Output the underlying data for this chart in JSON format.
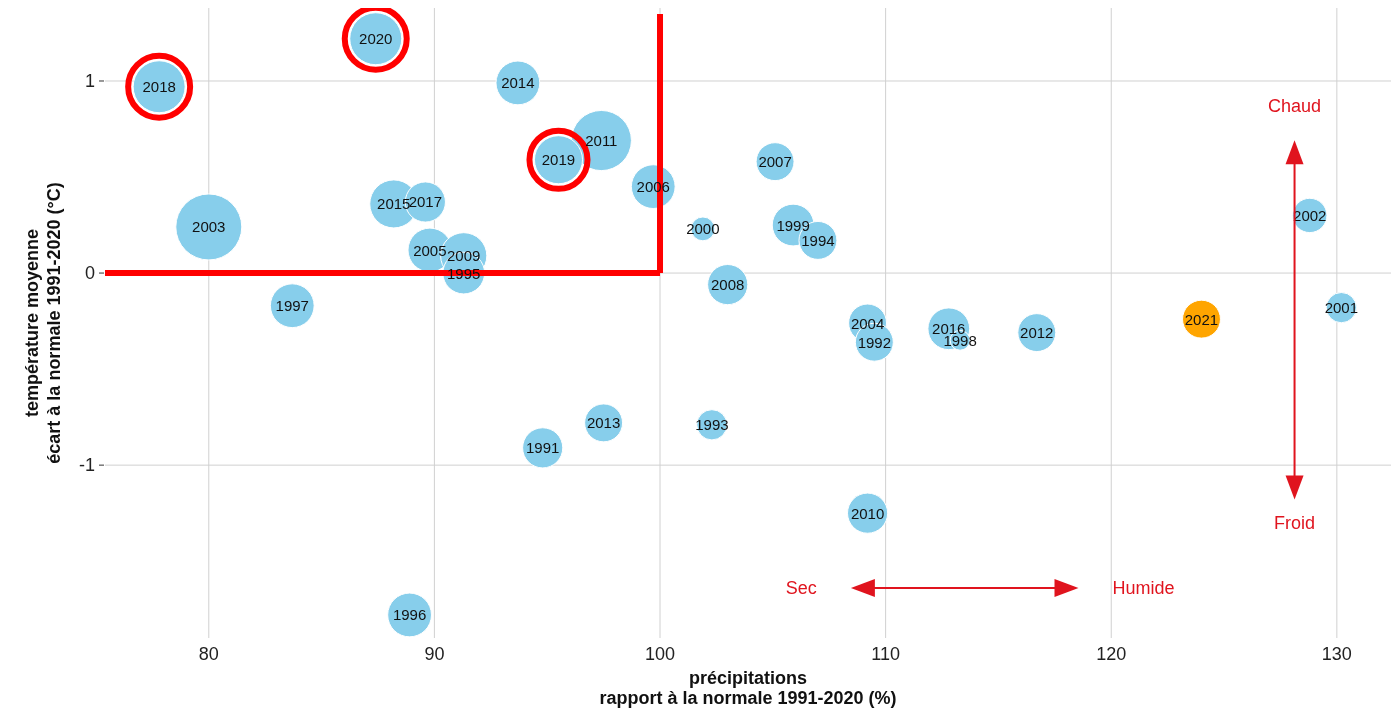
{
  "chart_data": {
    "type": "bubble",
    "xlabel": "précipitations\nrapport à la normale 1991-2020 (%)",
    "ylabel": "température moyenne\nécart à la normale 1991-2020 (°C)",
    "xlim": [
      75.4,
      132.4
    ],
    "ylim": [
      -1.9,
      1.38
    ],
    "xticks": [
      80,
      90,
      100,
      110,
      120,
      130
    ],
    "yticks": [
      -1,
      0,
      1
    ],
    "grid": true,
    "series": [
      {
        "color": "#87ceeb",
        "x": [
          80.0,
          88.2,
          89.6,
          89.8,
          91.3,
          91.3,
          83.7,
          93.7,
          97.4,
          99.7,
          101.9,
          105.1,
          105.9,
          107.0,
          103.0,
          109.2,
          109.5,
          112.8,
          113.3,
          116.7,
          130.2,
          128.8,
          97.5,
          94.8,
          102.3,
          109.2,
          88.9
        ],
        "values": [
          0.24,
          0.36,
          0.37,
          0.12,
          0.09,
          0.0,
          -0.17,
          0.99,
          0.69,
          0.45,
          0.23,
          0.58,
          0.25,
          0.17,
          -0.06,
          -0.26,
          -0.36,
          -0.29,
          -0.35,
          -0.31,
          -0.18,
          0.3,
          -0.78,
          -0.91,
          -0.79,
          -1.25,
          -1.78
        ],
        "sizes": [
          1,
          0.53,
          0.37,
          0.44,
          0.49,
          0.4,
          0.44,
          0.44,
          0.83,
          0.44,
          0.13,
          0.33,
          0.4,
          0.33,
          0.37,
          0.33,
          0.33,
          0.4,
          0.09,
          0.33,
          0.21,
          0.27,
          0.33,
          0.37,
          0.21,
          0.37,
          0.44
        ]
      },
      {
        "color": "#87ceeb",
        "x": [
          77.8,
          87.4,
          95.5
        ],
        "values": [
          0.97,
          1.22,
          0.59
        ],
        "sizes": [
          0.62,
          0.62,
          0.53
        ]
      },
      {
        "color": "#ffa500",
        "x": [
          124.0
        ],
        "values": [
          -0.24
        ],
        "sizes": [
          0.33
        ]
      }
    ],
    "ref_lines": [
      {
        "axis": "y",
        "value": 0,
        "color": "#ff0000"
      },
      {
        "axis": "x",
        "value": 100,
        "color": "#ff0000"
      }
    ],
    "annotations": [
      "Chaud",
      "Froid",
      "Sec",
      "Humide",
      {
        "text": "2003",
        "x": 80.0,
        "y": 0.24
      },
      {
        "text": "2015",
        "x": 88.2,
        "y": 0.36
      },
      {
        "text": "2017",
        "x": 89.6,
        "y": 0.37
      },
      {
        "text": "2005",
        "x": 89.8,
        "y": 0.12
      },
      {
        "text": "2009",
        "x": 91.3,
        "y": 0.09
      },
      {
        "text": "1995",
        "x": 91.3,
        "y": 0.0
      },
      {
        "text": "1997",
        "x": 83.7,
        "y": -0.17
      },
      {
        "text": "2014",
        "x": 93.7,
        "y": 0.99
      },
      {
        "text": "2011",
        "x": 97.4,
        "y": 0.69
      },
      {
        "text": "2006",
        "x": 99.7,
        "y": 0.45
      },
      {
        "text": "2000",
        "x": 101.9,
        "y": 0.23
      },
      {
        "text": "2007",
        "x": 105.1,
        "y": 0.58
      },
      {
        "text": "1999",
        "x": 105.9,
        "y": 0.25
      },
      {
        "text": "1994",
        "x": 107.0,
        "y": 0.17
      },
      {
        "text": "2008",
        "x": 103.0,
        "y": -0.06
      },
      {
        "text": "2004",
        "x": 109.2,
        "y": -0.26
      },
      {
        "text": "1992",
        "x": 109.5,
        "y": -0.36
      },
      {
        "text": "2016",
        "x": 112.8,
        "y": -0.29
      },
      {
        "text": "1998",
        "x": 113.3,
        "y": -0.35
      },
      {
        "text": "2012",
        "x": 116.7,
        "y": -0.31
      },
      {
        "text": "2001",
        "x": 130.2,
        "y": -0.18
      },
      {
        "text": "2002",
        "x": 128.8,
        "y": 0.3
      },
      {
        "text": "2013",
        "x": 97.5,
        "y": -0.78
      },
      {
        "text": "1991",
        "x": 94.8,
        "y": -0.91
      },
      {
        "text": "1993",
        "x": 102.3,
        "y": -0.79
      },
      {
        "text": "2010",
        "x": 109.2,
        "y": -1.25
      },
      {
        "text": "1996",
        "x": 88.9,
        "y": -1.78
      },
      {
        "text": "2018",
        "x": 77.8,
        "y": 0.97
      },
      {
        "text": "2020",
        "x": 87.4,
        "y": 1.22
      },
      {
        "text": "2019",
        "x": 95.5,
        "y": 0.59
      },
      {
        "text": "2021",
        "x": 124.0,
        "y": -0.24
      }
    ]
  }
}
